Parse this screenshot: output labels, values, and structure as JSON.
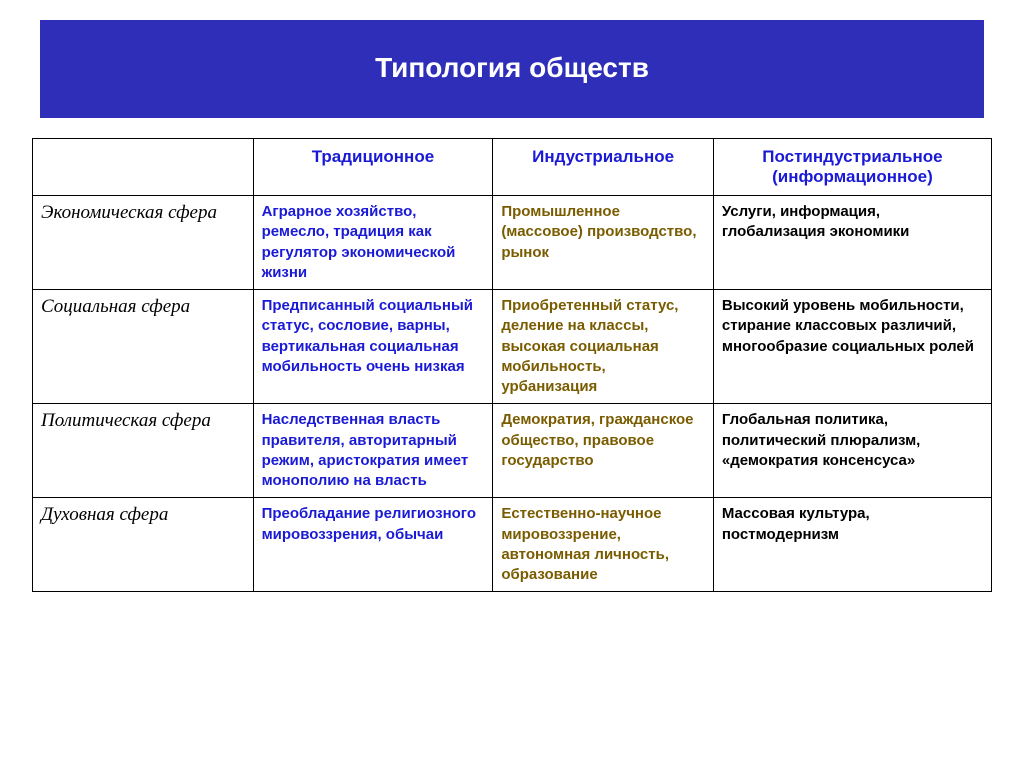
{
  "title": "Типология обществ",
  "colors": {
    "title_bg": "#2e2eb8",
    "title_text": "#ffffff",
    "header_text": "#1a1ad6",
    "trad_text": "#1a1ad6",
    "ind_text": "#7a5c00",
    "post_text": "#000000",
    "rowhead_text": "#000000",
    "border": "#000000",
    "page_bg": "#ffffff"
  },
  "typography": {
    "title_fontsize": 28,
    "header_fontsize": 17,
    "cell_fontsize": 15,
    "rowhead_fontsize": 19,
    "rowhead_family": "serif-italic"
  },
  "table": {
    "columns": [
      {
        "key": "rowhead",
        "label": ""
      },
      {
        "key": "trad",
        "label": "Традиционное"
      },
      {
        "key": "ind",
        "label": "Индустриальное"
      },
      {
        "key": "post",
        "label": "Постиндустриальное (информационное)"
      }
    ],
    "rows": [
      {
        "label": "Экономическая сфера",
        "trad": "Аграрное хозяйство, ремесло, традиция как регулятор экономической жизни",
        "ind": "Промышленное (массовое) производство, рынок",
        "post": "Услуги, информация, глобализация экономики"
      },
      {
        "label": "Социальная сфера",
        "trad": "Предписанный социальный статус, сословие, варны, вертикальная социальная мобильность очень низкая",
        "ind": "Приобретенный статус, деление на классы, высокая социальная мобильность, урбанизация",
        "post": "Высокий уровень мобильности, стирание классовых различий, многообразие социальных ролей"
      },
      {
        "label": "Политическая сфера",
        "trad": "Наследственная власть правителя, авторитарный режим, аристократия имеет монополию на власть",
        "ind": "Демократия, гражданское общество, правовое государство",
        "post": "Глобальная политика, политический плюрализм, «демократия консенсуса»"
      },
      {
        "label": "Духовная сфера",
        "trad": "Преобладание религиозного мировоззрения, обычаи",
        "ind": "Естественно-научное мировоззрение, автономная личность, образование",
        "post": "Массовая культура, постмодернизм"
      }
    ]
  }
}
